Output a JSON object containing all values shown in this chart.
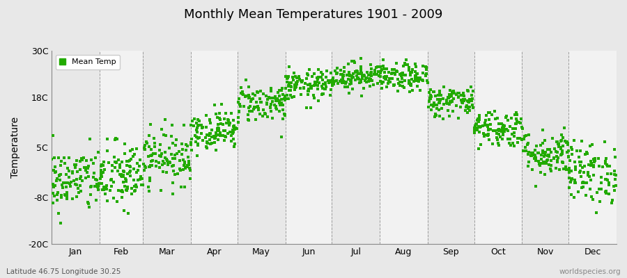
{
  "title": "Monthly Mean Temperatures 1901 - 2009",
  "ylabel": "Temperature",
  "subtitle": "Latitude 46.75 Longitude 30.25",
  "watermark": "worldspecies.org",
  "legend_label": "Mean Temp",
  "dot_color": "#22aa00",
  "bg_color": "#e8e8e8",
  "plot_bg_color_odd": "#e8e8e8",
  "plot_bg_color_even": "#f2f2f2",
  "ylim": [
    -20,
    30
  ],
  "yticks": [
    -20,
    -8,
    5,
    18,
    30
  ],
  "ytick_labels": [
    "-20C",
    "-8C",
    "5C",
    "18C",
    "30C"
  ],
  "months": [
    "Jan",
    "Feb",
    "Mar",
    "Apr",
    "May",
    "Jun",
    "Jul",
    "Aug",
    "Sep",
    "Oct",
    "Nov",
    "Dec"
  ],
  "days_in_month": [
    31,
    28,
    31,
    30,
    31,
    30,
    31,
    31,
    30,
    31,
    30,
    31
  ],
  "monthly_mean": [
    -3.5,
    -2.5,
    2.5,
    9.5,
    16.5,
    21.0,
    23.5,
    23.0,
    17.0,
    10.0,
    3.5,
    -1.5
  ],
  "monthly_std": [
    4.2,
    4.5,
    3.5,
    2.5,
    2.5,
    2.0,
    1.8,
    1.8,
    2.0,
    2.5,
    3.0,
    4.0
  ],
  "n_years": 109,
  "seed": 42,
  "vline_color": "#888888",
  "dot_size": 6
}
